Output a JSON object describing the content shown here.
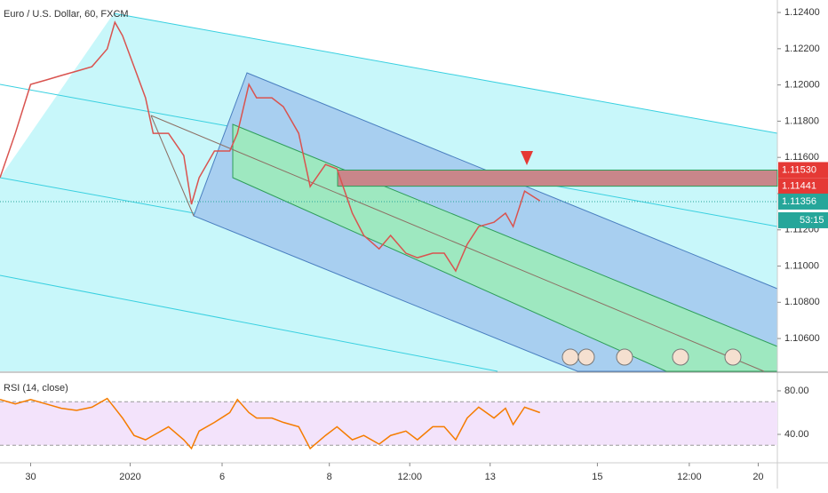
{
  "chart_data": [
    {
      "type": "line",
      "title": "Euro / U.S. Dollar, 60, FXCM",
      "color": "#d9534f",
      "x": [
        0,
        4,
        8,
        12,
        16,
        20,
        24,
        28,
        30,
        32,
        35,
        38,
        40,
        44,
        48,
        50,
        52,
        56,
        60,
        62,
        65,
        67,
        71,
        74,
        78,
        81,
        85,
        88,
        92,
        95,
        99,
        102,
        106,
        109,
        113,
        116,
        119,
        122,
        125,
        129,
        132,
        134,
        137,
        141
      ],
      "values": [
        1.11488,
        1.11733,
        1.12003,
        1.12027,
        1.12052,
        1.12076,
        1.12101,
        1.12199,
        1.12346,
        1.12272,
        1.12101,
        1.11929,
        1.11733,
        1.11733,
        1.1161,
        1.11341,
        1.11488,
        1.11635,
        1.11635,
        1.11733,
        1.12003,
        1.11929,
        1.11929,
        1.1188,
        1.11733,
        1.11439,
        1.11561,
        1.11537,
        1.11292,
        1.11169,
        1.11095,
        1.11169,
        1.11071,
        1.11046,
        1.11071,
        1.11071,
        1.10973,
        1.1112,
        1.11218,
        1.11242,
        1.11292,
        1.11218,
        1.11414,
        1.1136
      ],
      "xlim": [
        0,
        203
      ],
      "ylim": [
        1.10419,
        1.12469
      ],
      "yticks": [
        {
          "value": 1.124,
          "label": "1.12400"
        },
        {
          "value": 1.122,
          "label": "1.12200"
        },
        {
          "value": 1.12,
          "label": "1.12000"
        },
        {
          "value": 1.118,
          "label": "1.11800"
        },
        {
          "value": 1.116,
          "label": "1.11600"
        },
        {
          "value": 1.114,
          "label": "1.11400"
        },
        {
          "value": 1.112,
          "label": "1.11200"
        },
        {
          "value": 1.11,
          "label": "1.11000"
        },
        {
          "value": 1.108,
          "label": "1.10800"
        },
        {
          "value": 1.106,
          "label": "1.10600"
        }
      ],
      "price_labels": [
        {
          "value": 1.1153,
          "label": "1.11530",
          "color": "#e53935"
        },
        {
          "value": 1.11441,
          "label": "1.11441",
          "color": "#e53935"
        },
        {
          "value": 1.11356,
          "label": "1.11356",
          "color": "#26a69a"
        }
      ],
      "countdown": "53:15",
      "xticks": [
        {
          "value": 8,
          "label": "30"
        },
        {
          "value": 34,
          "label": "2020"
        },
        {
          "value": 58,
          "label": "6"
        },
        {
          "value": 86,
          "label": "8"
        },
        {
          "value": 107,
          "label": "12:00"
        },
        {
          "value": 128,
          "label": "13"
        },
        {
          "value": 156,
          "label": "15"
        },
        {
          "value": 180,
          "label": "12:00"
        },
        {
          "value": 198,
          "label": "20"
        }
      ]
    },
    {
      "type": "line",
      "title": "RSI (14, close)",
      "color": "#f57c00",
      "x": [
        0,
        4,
        8,
        12,
        16,
        20,
        24,
        28,
        30,
        32,
        35,
        38,
        40,
        44,
        48,
        50,
        52,
        56,
        60,
        62,
        65,
        67,
        71,
        74,
        78,
        81,
        85,
        88,
        92,
        95,
        99,
        102,
        106,
        109,
        113,
        116,
        119,
        122,
        125,
        129,
        132,
        134,
        137,
        141
      ],
      "values": [
        72,
        68,
        72,
        68,
        64,
        62,
        65,
        73,
        64,
        55,
        39,
        35,
        39,
        47,
        35,
        27,
        43,
        51,
        60,
        72,
        60,
        55,
        55,
        51,
        47,
        27,
        39,
        47,
        35,
        39,
        31,
        39,
        43,
        35,
        47,
        47,
        35,
        55,
        65,
        55,
        64,
        49,
        65,
        60
      ],
      "xlim": [
        0,
        203
      ],
      "ylim": [
        14.7,
        96.3
      ],
      "yticks": [
        {
          "value": 80,
          "label": "80.00"
        },
        {
          "value": 40,
          "label": "40.00"
        }
      ],
      "bands": [
        70,
        30
      ]
    }
  ]
}
